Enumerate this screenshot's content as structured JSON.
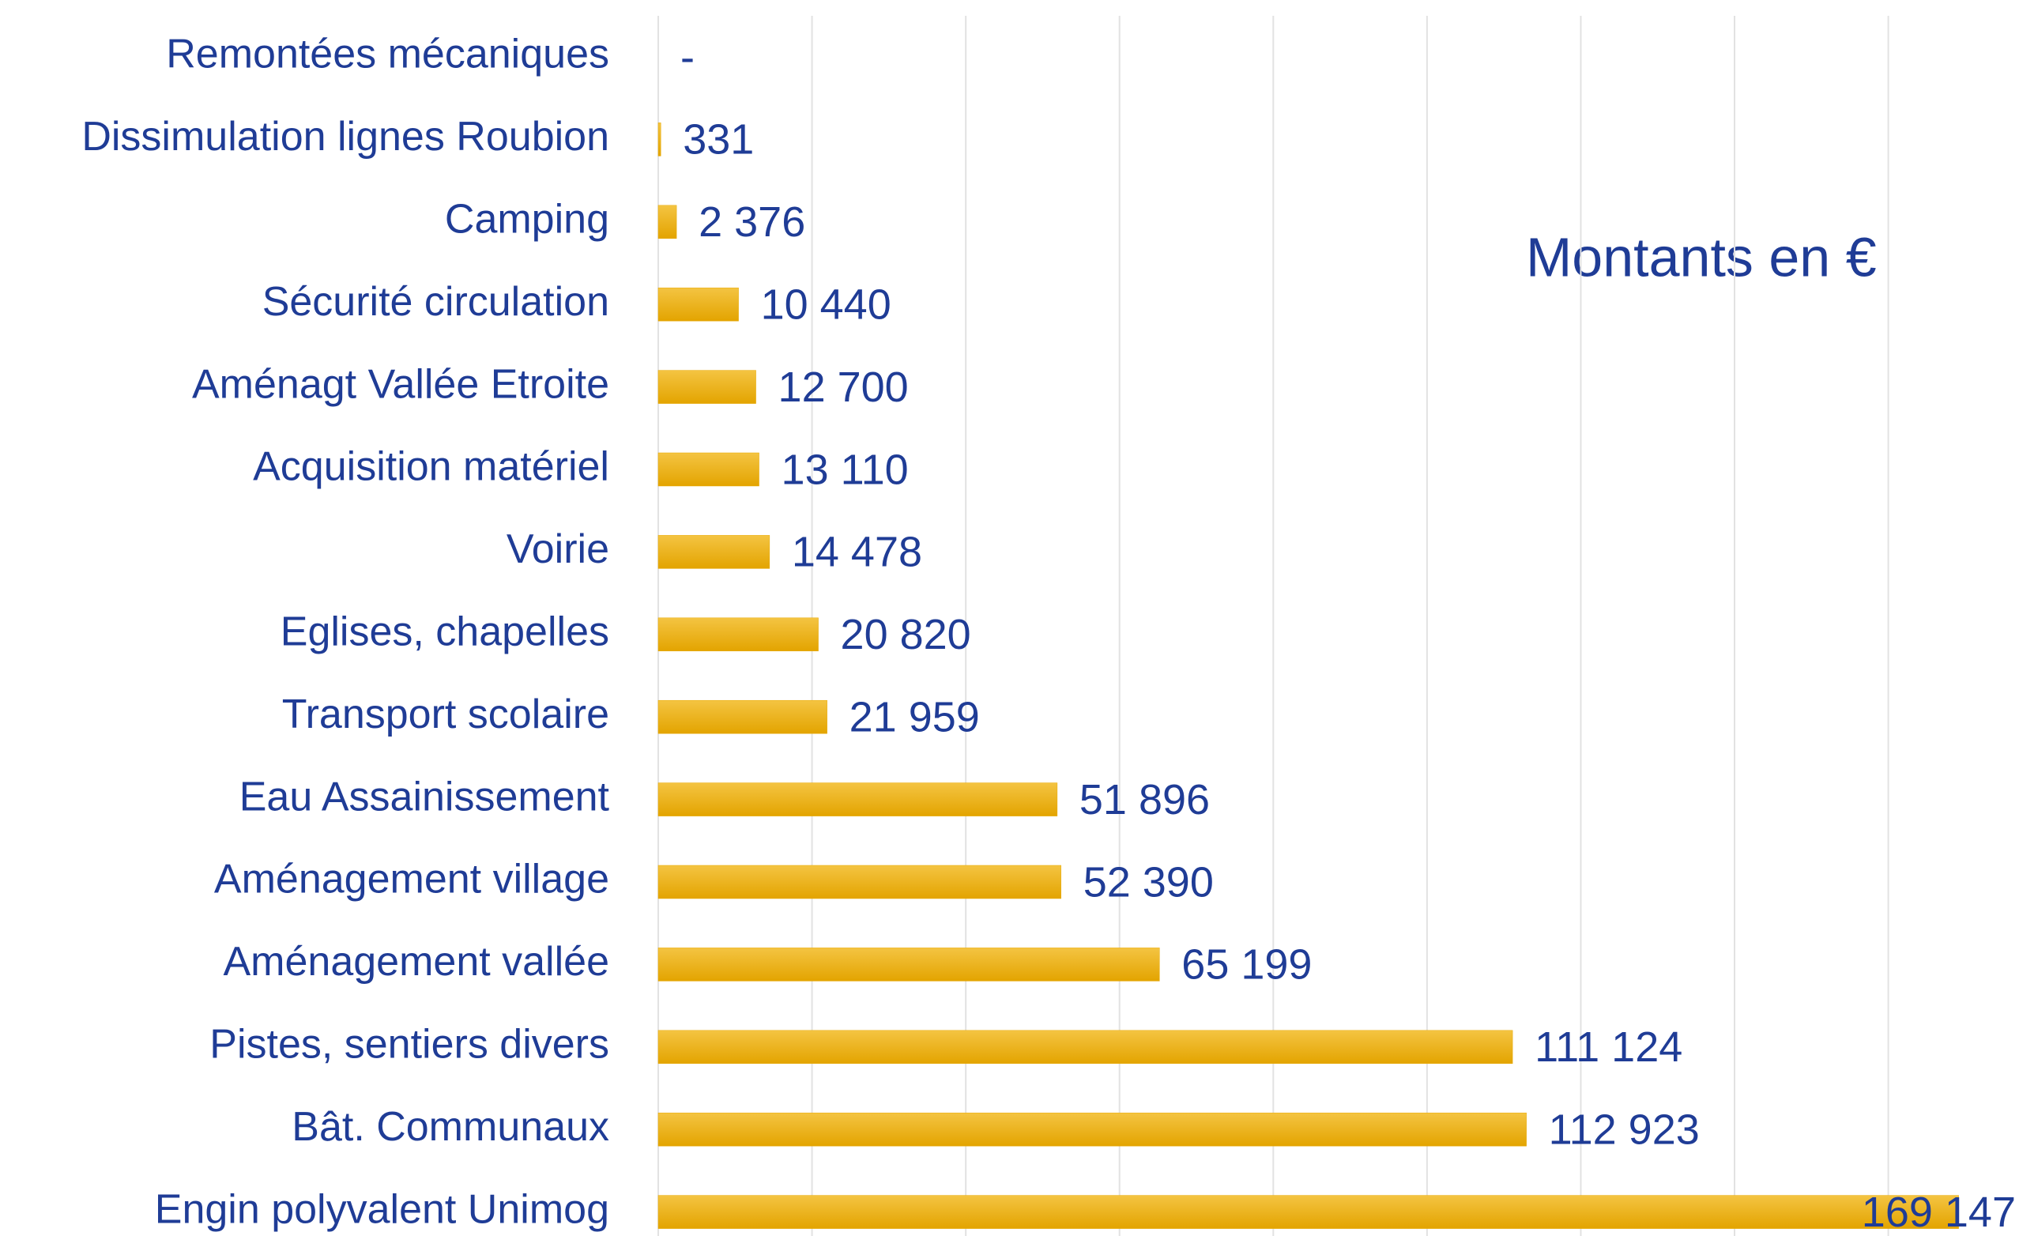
{
  "chart_data": {
    "type": "bar",
    "orientation": "horizontal",
    "annotation": "Montants en €",
    "categories": [
      "Remontées mécaniques",
      "Dissimulation lignes Roubion",
      "Camping",
      "Sécurité circulation",
      "Aménagt Vallée Etroite",
      "Acquisition matériel",
      "Voirie",
      "Eglises, chapelles",
      "Transport scolaire",
      "Eau Assainissement",
      "Aménagement village",
      "Aménagement vallée",
      "Pistes, sentiers divers",
      "Bât. Communaux",
      "Engin polyvalent Unimog"
    ],
    "values": [
      0,
      331,
      2376,
      10440,
      12700,
      13110,
      14478,
      20820,
      21959,
      51896,
      52390,
      65199,
      111124,
      112923,
      169147
    ],
    "value_labels": [
      "-",
      "331",
      "2 376",
      "10 440",
      "12 700",
      "13 110",
      "14 478",
      "20 820",
      "21 959",
      "51 896",
      "52 390",
      "65 199",
      "111 124",
      "112 923",
      "169 147"
    ],
    "color": "#e8a900",
    "xlim": [
      0,
      177000
    ],
    "xticks": [
      0,
      20000,
      40000,
      60000,
      80000,
      100000,
      120000,
      140000,
      160000
    ],
    "grid": true
  }
}
